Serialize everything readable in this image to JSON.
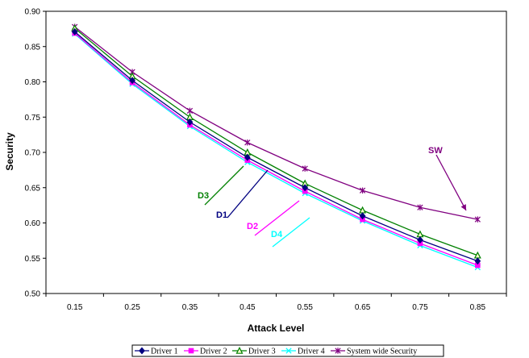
{
  "chart_data": {
    "type": "line",
    "xlabel": "Attack Level",
    "ylabel": "Security",
    "categories": [
      "0.15",
      "0.25",
      "0.35",
      "0.45",
      "0.55",
      "0.65",
      "0.75",
      "0.85"
    ],
    "ylim": [
      0.5,
      0.9
    ],
    "yticks": [
      "0.50",
      "0.55",
      "0.60",
      "0.65",
      "0.70",
      "0.75",
      "0.80",
      "0.85",
      "0.90"
    ],
    "grid": false,
    "legend_position": "bottom",
    "series": [
      {
        "name": "Driver 1",
        "color": "#000080",
        "marker": "diamond",
        "values": [
          0.871,
          0.802,
          0.743,
          0.693,
          0.65,
          0.61,
          0.576,
          0.546
        ]
      },
      {
        "name": "Driver 2",
        "color": "#ff00ff",
        "marker": "square",
        "values": [
          0.869,
          0.799,
          0.739,
          0.689,
          0.645,
          0.605,
          0.571,
          0.54
        ]
      },
      {
        "name": "Driver 3",
        "color": "#008000",
        "marker": "triangle",
        "values": [
          0.876,
          0.808,
          0.75,
          0.7,
          0.656,
          0.618,
          0.584,
          0.554
        ]
      },
      {
        "name": "Driver 4",
        "color": "#00ffff",
        "marker": "x",
        "values": [
          0.868,
          0.797,
          0.737,
          0.686,
          0.642,
          0.603,
          0.568,
          0.537
        ]
      },
      {
        "name": "System wide Security",
        "color": "#800080",
        "marker": "star",
        "values": [
          0.878,
          0.814,
          0.759,
          0.714,
          0.677,
          0.646,
          0.622,
          0.605
        ]
      }
    ],
    "annotations": [
      {
        "text": "D3",
        "color": "#008000"
      },
      {
        "text": "D1",
        "color": "#000080"
      },
      {
        "text": "D2",
        "color": "#ff00ff"
      },
      {
        "text": "D4",
        "color": "#00ffff"
      },
      {
        "text": "SW",
        "color": "#800080"
      }
    ]
  }
}
